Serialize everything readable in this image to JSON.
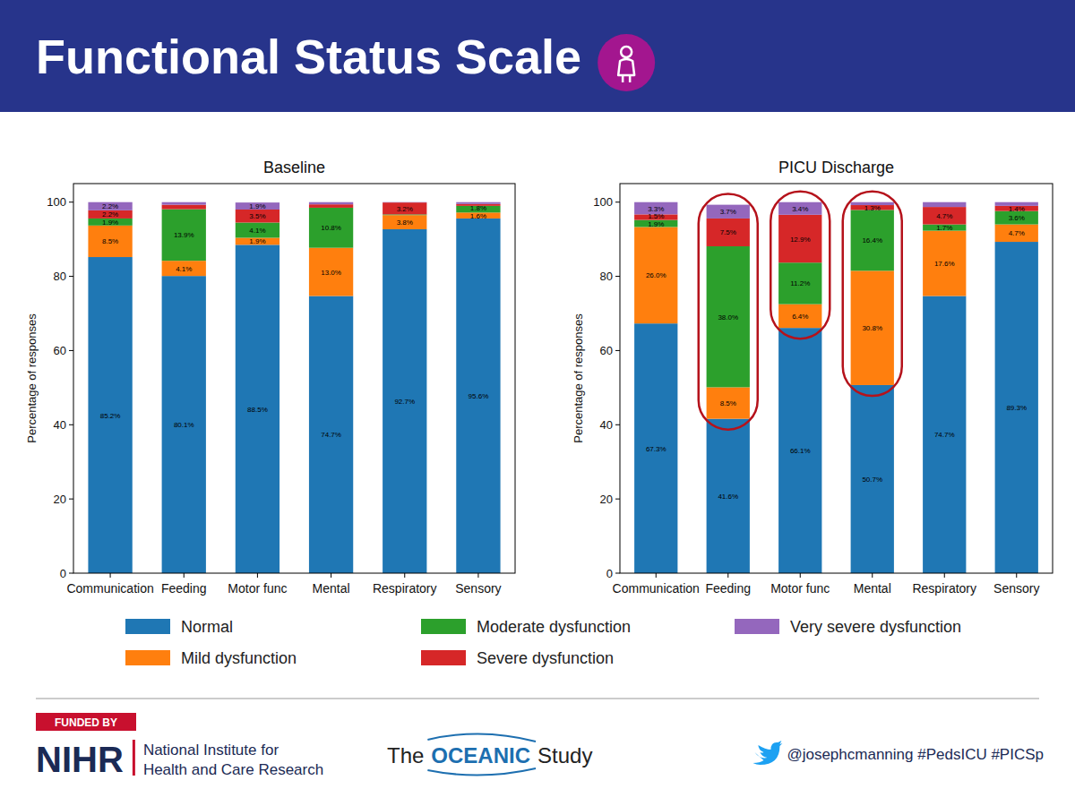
{
  "slide": {
    "title": "Functional Status Scale",
    "funded_by": "FUNDED BY",
    "funder": "NIHR",
    "funder_name": [
      "National Institute for",
      "Health and Care Research"
    ],
    "study_logo": [
      "The",
      "OCEANIC",
      "Study"
    ],
    "social": "@josephcmanning #PedsICU #PICSp"
  },
  "chart_data": [
    {
      "type": "bar",
      "title": "Baseline",
      "y_label": "Percentage of responses",
      "categories": [
        "Communication",
        "Feeding",
        "Motor func",
        "Mental",
        "Respiratory",
        "Sensory"
      ],
      "stacked": true,
      "data_labels": true,
      "grid": false,
      "legend": "bottom",
      "ylim": [
        0,
        105
      ],
      "yticks": [
        0,
        20,
        40,
        60,
        80,
        100
      ],
      "series": [
        {
          "name": "Normal",
          "color": "#1f77b4",
          "values": [
            85.2,
            80.1,
            88.5,
            74.7,
            92.7,
            95.6
          ],
          "value_labels": [
            "85.2%",
            "80.1%",
            "88.5%",
            "74.7%",
            "92.7%",
            "95.6%"
          ]
        },
        {
          "name": "Mild dysfunction",
          "color": "#ff7f0e",
          "values": [
            8.5,
            4.1,
            1.9,
            13.0,
            3.8,
            1.6
          ],
          "value_labels": [
            "8.5%",
            "4.1%",
            "1.9%",
            "13.0%",
            "3.8%",
            "1.6%"
          ]
        },
        {
          "name": "Moderate dysfunction",
          "color": "#2ca02c",
          "values": [
            1.9,
            13.9,
            4.1,
            10.8,
            0.2,
            1.8
          ],
          "value_labels": [
            "1.9%",
            "13.9%",
            "4.1%",
            "10.8%",
            null,
            "1.8%"
          ]
        },
        {
          "name": "Severe dysfunction",
          "color": "#d62728",
          "values": [
            2.2,
            1.2,
            3.5,
            0.9,
            3.2,
            0.5
          ],
          "value_labels": [
            "2.2%",
            null,
            "3.5%",
            null,
            "3.2%",
            null
          ]
        },
        {
          "name": "Very severe dysfunction",
          "color": "#9467bd",
          "values": [
            2.2,
            0.7,
            1.9,
            0.6,
            0.1,
            0.5
          ],
          "value_labels": [
            "2.2%",
            null,
            "1.9%",
            null,
            null,
            null
          ]
        }
      ]
    },
    {
      "type": "bar",
      "title": "PICU Discharge",
      "y_label": "Percentage of responses",
      "categories": [
        "Communication",
        "Feeding",
        "Motor func",
        "Mental",
        "Respiratory",
        "Sensory"
      ],
      "stacked": true,
      "data_labels": true,
      "grid": false,
      "ylim": [
        0,
        105
      ],
      "yticks": [
        0,
        20,
        40,
        60,
        80,
        100
      ],
      "series": [
        {
          "color": "#1f77b4",
          "values": [
            67.3,
            41.6,
            66.1,
            50.7,
            74.7,
            89.3
          ],
          "value_labels": [
            "67.3%",
            "41.6%",
            "66.1%",
            "50.7%",
            "74.7%",
            "89.3%"
          ]
        },
        {
          "color": "#ff7f0e",
          "values": [
            26.0,
            8.5,
            6.4,
            30.8,
            17.6,
            4.7
          ],
          "value_labels": [
            "26.0%",
            "8.5%",
            "6.4%",
            "30.8%",
            "17.6%",
            "4.7%"
          ]
        },
        {
          "color": "#2ca02c",
          "values": [
            1.9,
            38.0,
            11.2,
            16.4,
            1.7,
            3.6
          ],
          "value_labels": [
            "1.9%",
            "38.0%",
            "11.2%",
            "16.4%",
            "1.7%",
            "3.6%"
          ]
        },
        {
          "color": "#d62728",
          "values": [
            1.5,
            7.5,
            12.9,
            1.3,
            4.7,
            1.4
          ],
          "value_labels": [
            "1.5%",
            "7.5%",
            "12.9%",
            "1.3%",
            "4.7%",
            "1.4%"
          ]
        },
        {
          "color": "#9467bd",
          "values": [
            3.3,
            3.7,
            3.4,
            0.8,
            1.3,
            1.0
          ],
          "value_labels": [
            "3.3%",
            "3.7%",
            "3.4%",
            null,
            null,
            null
          ]
        }
      ]
    }
  ]
}
